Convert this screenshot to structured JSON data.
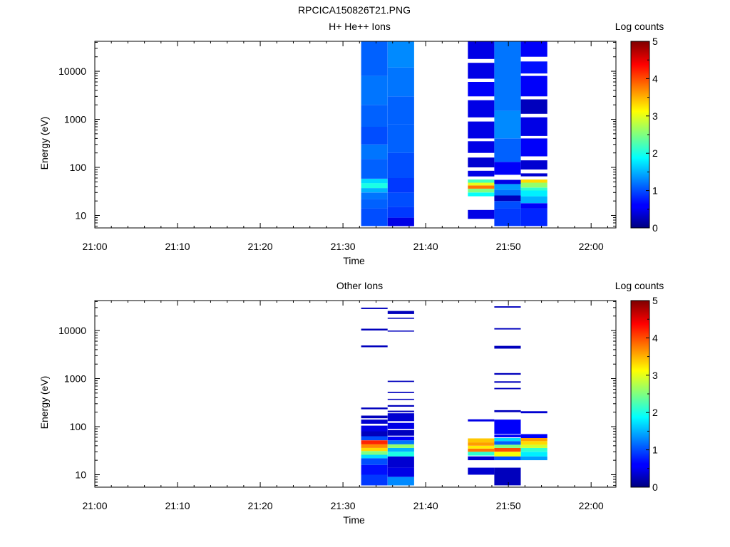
{
  "figure_title": "RPCICA150826T21.PNG",
  "chart_data": [
    {
      "type": "heatmap",
      "title": "H+ He++ Ions",
      "xlabel": "Time",
      "ylabel": "Energy (eV)",
      "colorbar_label": "Log counts",
      "colorbar_ticks": [
        "0",
        "1",
        "2",
        "3",
        "4",
        "5"
      ],
      "x_ticks": [
        "21:00",
        "21:10",
        "21:20",
        "21:30",
        "21:40",
        "21:50",
        "22:00"
      ],
      "y_ticks": [
        "10",
        "100",
        "1000",
        "10000"
      ],
      "xlim": [
        "21:00",
        "22:03"
      ],
      "ylim": [
        5.5,
        42000
      ],
      "y_scale": "log",
      "z_range": [
        0,
        5
      ],
      "columns": [
        {
          "start": "21:32.2",
          "end": "21:35.4",
          "cells": [
            [
              6,
              14,
              1.0
            ],
            [
              14,
              22,
              1.1
            ],
            [
              22,
              30,
              1.2
            ],
            [
              30,
              37,
              1.5
            ],
            [
              37,
              47,
              2.0
            ],
            [
              47,
              58,
              1.7
            ],
            [
              58,
              150,
              1.1
            ],
            [
              150,
              300,
              1.2
            ],
            [
              300,
              700,
              1.0
            ],
            [
              700,
              2000,
              1.1
            ],
            [
              2000,
              8000,
              1.2
            ],
            [
              8000,
              42000,
              1.1
            ]
          ]
        },
        {
          "start": "21:35.4",
          "end": "21:38.6",
          "cells": [
            [
              6,
              9,
              0.5
            ],
            [
              9,
              15,
              0.9
            ],
            [
              15,
              30,
              1.0
            ],
            [
              30,
              60,
              0.9
            ],
            [
              60,
              200,
              1.0
            ],
            [
              200,
              800,
              1.1
            ],
            [
              800,
              3000,
              1.1
            ],
            [
              3000,
              12000,
              1.2
            ],
            [
              12000,
              42000,
              1.3
            ]
          ]
        },
        {
          "start": "21:45.1",
          "end": "21:48.3",
          "cells": [
            [
              8.5,
              13,
              0.5
            ],
            [
              25,
              30,
              1.9
            ],
            [
              30,
              36,
              2.5
            ],
            [
              36,
              42,
              3.8
            ],
            [
              42,
              48,
              3.0
            ],
            [
              48,
              56,
              2.2
            ],
            [
              65,
              85,
              0.5
            ],
            [
              100,
              160,
              0.4
            ],
            [
              200,
              350,
              0.5
            ],
            [
              400,
              900,
              0.5
            ],
            [
              1100,
              2500,
              0.5
            ],
            [
              3000,
              6000,
              0.6
            ],
            [
              7000,
              15000,
              0.5
            ],
            [
              18000,
              42000,
              0.5
            ]
          ]
        },
        {
          "start": "21:48.3",
          "end": "21:51.5",
          "cells": [
            [
              6,
              14,
              0.9
            ],
            [
              14,
              20,
              1.0
            ],
            [
              20,
              26,
              0.3
            ],
            [
              26,
              34,
              1.2
            ],
            [
              34,
              45,
              1.4
            ],
            [
              45,
              55,
              0.5
            ],
            [
              70,
              130,
              0.6
            ],
            [
              130,
              400,
              1.1
            ],
            [
              400,
              1500,
              1.3
            ],
            [
              1500,
              6000,
              1.2
            ],
            [
              6000,
              42000,
              1.2
            ]
          ]
        },
        {
          "start": "21:51.5",
          "end": "21:54.7",
          "cells": [
            [
              6,
              14,
              0.8
            ],
            [
              14,
              18,
              0.6
            ],
            [
              18,
              25,
              1.5
            ],
            [
              25,
              33,
              1.8
            ],
            [
              33,
              38,
              2.1
            ],
            [
              38,
              48,
              2.6
            ],
            [
              48,
              56,
              3.3
            ],
            [
              65,
              75,
              0.4
            ],
            [
              90,
              140,
              0.4
            ],
            [
              170,
              400,
              0.6
            ],
            [
              450,
              1100,
              0.5
            ],
            [
              1300,
              2600,
              0.3
            ],
            [
              3000,
              8000,
              0.6
            ],
            [
              9000,
              16000,
              0.7
            ],
            [
              20000,
              42000,
              0.6
            ]
          ]
        }
      ]
    },
    {
      "type": "heatmap",
      "title": "Other Ions",
      "xlabel": "Time",
      "ylabel": "Energy (eV)",
      "colorbar_label": "Log counts",
      "colorbar_ticks": [
        "0",
        "1",
        "2",
        "3",
        "4",
        "5"
      ],
      "x_ticks": [
        "21:00",
        "21:10",
        "21:20",
        "21:30",
        "21:40",
        "21:50",
        "22:00"
      ],
      "y_ticks": [
        "10",
        "100",
        "1000",
        "10000"
      ],
      "xlim": [
        "21:00",
        "22:03"
      ],
      "ylim": [
        5.5,
        42000
      ],
      "y_scale": "log",
      "z_range": [
        0,
        5
      ],
      "columns": [
        {
          "start": "21:32.2",
          "end": "21:35.4",
          "cells": [
            [
              6,
              10,
              0.9
            ],
            [
              10,
              16,
              0.7
            ],
            [
              16,
              22,
              1.0
            ],
            [
              22,
              26,
              1.7
            ],
            [
              26,
              31,
              2.5
            ],
            [
              31,
              36,
              3.3
            ],
            [
              36,
              43,
              3.7
            ],
            [
              43,
              52,
              4.2
            ],
            [
              52,
              63,
              1.0
            ],
            [
              63,
              80,
              0.3
            ],
            [
              80,
              105,
              0.5
            ],
            [
              115,
              140,
              0.4
            ],
            [
              150,
              170,
              0.3
            ],
            [
              230,
              250,
              0.3
            ],
            [
              4500,
              4900,
              0.3
            ],
            [
              10000,
              10900,
              0.3
            ],
            [
              28000,
              30000,
              0.3
            ]
          ]
        },
        {
          "start": "21:35.4",
          "end": "21:38.6",
          "cells": [
            [
              6,
              9,
              1.3
            ],
            [
              9,
              14,
              0.5
            ],
            [
              14,
              24,
              0.4
            ],
            [
              24,
              30,
              2.0
            ],
            [
              30,
              36,
              1.5
            ],
            [
              36,
              43,
              2.6
            ],
            [
              43,
              52,
              1.2
            ],
            [
              52,
              62,
              0.6
            ],
            [
              65,
              85,
              0.3
            ],
            [
              90,
              120,
              0.5
            ],
            [
              130,
              190,
              0.4
            ],
            [
              200,
              215,
              0.3
            ],
            [
              260,
              280,
              0.3
            ],
            [
              360,
              380,
              0.3
            ],
            [
              500,
              530,
              0.3
            ],
            [
              850,
              900,
              0.3
            ],
            [
              9500,
              10000,
              0.3
            ],
            [
              17500,
              18500,
              0.3
            ],
            [
              22000,
              25500,
              0.3
            ]
          ]
        },
        {
          "start": "21:45.1",
          "end": "21:48.3",
          "cells": [
            [
              10,
              14,
              0.4
            ],
            [
              20,
              24,
              0.4
            ],
            [
              25,
              30,
              2.1
            ],
            [
              30,
              35,
              3.8
            ],
            [
              35,
              40,
              3.2
            ],
            [
              40,
              47,
              3.6
            ],
            [
              47,
              57,
              3.4
            ],
            [
              128,
              142,
              0.5
            ]
          ]
        },
        {
          "start": "21:48.3",
          "end": "21:51.5",
          "cells": [
            [
              6,
              14,
              0.3
            ],
            [
              20,
              24,
              1.0
            ],
            [
              24,
              30,
              3.1
            ],
            [
              30,
              36,
              4.0
            ],
            [
              36,
              42,
              2.5
            ],
            [
              42,
              50,
              1.1
            ],
            [
              50,
              58,
              1.7
            ],
            [
              60,
              68,
              0.6
            ],
            [
              70,
              140,
              0.6
            ],
            [
              200,
              220,
              0.3
            ],
            [
              600,
              640,
              0.3
            ],
            [
              820,
              880,
              0.3
            ],
            [
              1200,
              1300,
              0.3
            ],
            [
              4200,
              4800,
              0.3
            ],
            [
              10500,
              11200,
              0.3
            ],
            [
              30000,
              32000,
              0.3
            ]
          ]
        },
        {
          "start": "21:51.5",
          "end": "21:54.7",
          "cells": [
            [
              20,
              24,
              1.4
            ],
            [
              24,
              30,
              1.8
            ],
            [
              30,
              36,
              2.1
            ],
            [
              36,
              42,
              2.9
            ],
            [
              42,
              50,
              3.3
            ],
            [
              50,
              58,
              3.6
            ],
            [
              58,
              70,
              0.6
            ],
            [
              190,
              210,
              0.4
            ]
          ]
        }
      ]
    }
  ]
}
